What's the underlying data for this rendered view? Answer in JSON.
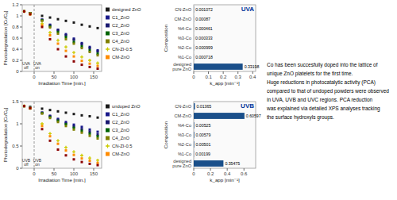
{
  "chart_data": [
    {
      "type": "scatter",
      "x_label": "Irradiation Time [min.]",
      "y_label": "Photodegradation [Cₜ/C₀]",
      "x": [
        -25,
        -10,
        20,
        40,
        60,
        80,
        100,
        120,
        140,
        160
      ],
      "xlim": [
        -30,
        170
      ],
      "xticks": [
        0,
        50,
        100,
        150
      ],
      "ylim": [
        0.0,
        1.2
      ],
      "yticks": [
        0,
        0.2,
        0.4,
        0.6,
        0.8,
        1,
        1.2
      ],
      "grid": false,
      "legend": "right",
      "vline_x": 0,
      "annotations": [
        {
          "text": "UVA\noff",
          "x": -20,
          "y": 0.02
        },
        {
          "text": "UVA\non",
          "x": 8,
          "y": 0.02
        }
      ],
      "series": [
        {
          "name": "designed ZnO",
          "color": "#1a1a1a",
          "marker": "square",
          "values": [
            1.08,
            1.05,
            1.0,
            0.97,
            0.94,
            0.91,
            0.88,
            0.84,
            0.81,
            0.78
          ]
        },
        {
          "name": "C1_ZnO",
          "color": "#1a1a8B",
          "marker": "square",
          "values": [
            1.08,
            1.05,
            0.93,
            0.84,
            0.75,
            0.67,
            0.59,
            0.51,
            0.44,
            0.38
          ]
        },
        {
          "name": "C2_ZnO",
          "color": "#191970",
          "marker": "square",
          "values": [
            1.08,
            1.05,
            0.93,
            0.83,
            0.74,
            0.65,
            0.57,
            0.49,
            0.42,
            0.36
          ]
        },
        {
          "name": "C3_ZnO",
          "color": "#006400",
          "marker": "square",
          "values": [
            1.08,
            1.05,
            0.92,
            0.81,
            0.71,
            0.62,
            0.53,
            0.45,
            0.38,
            0.32
          ]
        },
        {
          "name": "C4_ZnO",
          "color": "#808000",
          "marker": "square",
          "values": [
            1.08,
            1.05,
            0.91,
            0.79,
            0.68,
            0.58,
            0.5,
            0.42,
            0.35,
            0.29
          ]
        },
        {
          "name": "CN-ZI-0.5",
          "color": "#CCCC00",
          "marker": "plus",
          "values": [
            1.08,
            1.03,
            0.86,
            0.7,
            0.56,
            0.44,
            0.34,
            0.26,
            0.2,
            0.15
          ]
        },
        {
          "name": "CM-ZnO",
          "color": "#FF8C00",
          "marker": "square",
          "values": [
            1.08,
            1.03,
            0.83,
            0.65,
            0.5,
            0.37,
            0.27,
            0.19,
            0.14,
            0.1
          ]
        },
        {
          "color": "#8B0000",
          "marker": "square",
          "values": [
            1.08,
            1.03,
            0.8,
            0.58,
            0.4,
            0.27,
            0.18,
            0.12,
            0.08,
            0.05
          ]
        }
      ]
    },
    {
      "type": "scatter",
      "x_label": "Irradiation Time [min.]",
      "y_label": "Photodegradation [Cₜ/C₀]",
      "x": [
        -25,
        -10,
        20,
        40,
        60,
        80,
        100,
        120,
        140,
        160
      ],
      "xlim": [
        -30,
        170
      ],
      "xticks": [
        0,
        50,
        100,
        150
      ],
      "ylim": [
        0.0,
        1.5
      ],
      "yticks": [
        0,
        0.5,
        1,
        1.5
      ],
      "grid": false,
      "legend": "right",
      "vline_x": 0,
      "annotations": [
        {
          "text": "UVB\noff",
          "x": -20,
          "y": 0.02
        },
        {
          "text": "UVB\non",
          "x": 8,
          "y": 0.02
        }
      ],
      "series": [
        {
          "name": "undoped ZnO",
          "color": "#1a1a1a",
          "marker": "square",
          "values": [
            1.4,
            1.38,
            1.34,
            1.31,
            1.28,
            1.25,
            1.22,
            1.19,
            1.17,
            1.14
          ]
        },
        {
          "name": "C1_ZnO",
          "color": "#1a1a8B",
          "marker": "square",
          "values": [
            1.4,
            1.35,
            1.25,
            1.18,
            1.11,
            1.04,
            0.98,
            0.93,
            0.87,
            0.82
          ]
        },
        {
          "name": "C2_ZnO",
          "color": "#191970",
          "marker": "square",
          "values": [
            1.4,
            1.35,
            1.25,
            1.17,
            1.09,
            1.01,
            0.94,
            0.88,
            0.82,
            0.76
          ]
        },
        {
          "name": "C3_ZnO",
          "color": "#006400",
          "marker": "square",
          "values": [
            1.4,
            1.35,
            1.24,
            1.15,
            1.07,
            0.99,
            0.91,
            0.84,
            0.78,
            0.72
          ]
        },
        {
          "name": "C4_ZnO",
          "color": "#808000",
          "marker": "square",
          "values": [
            1.4,
            1.35,
            1.23,
            1.13,
            1.04,
            0.95,
            0.87,
            0.8,
            0.73,
            0.67
          ]
        },
        {
          "name": "CN-ZI-0.5",
          "color": "#CCCC00",
          "marker": "plus",
          "values": [
            1.4,
            1.35,
            1.0,
            0.78,
            0.62,
            0.47,
            0.37,
            0.29,
            0.23,
            0.18
          ]
        },
        {
          "name": "CM-ZnO",
          "color": "#FF8C00",
          "marker": "square",
          "values": [
            1.4,
            1.35,
            0.95,
            0.72,
            0.55,
            0.4,
            0.3,
            0.22,
            0.17,
            0.12
          ]
        },
        {
          "color": "#8B0000",
          "marker": "square",
          "values": [
            1.4,
            1.35,
            0.88,
            0.62,
            0.42,
            0.29,
            0.2,
            0.14,
            0.1,
            0.07
          ]
        }
      ]
    },
    {
      "type": "bar",
      "orientation": "horizontal",
      "x_label": "k_app [min⁻¹]",
      "y_label": "Composition",
      "categories": [
        "CN-ZnO",
        "CM-ZnO",
        "%4-Co",
        "%3-Co",
        "%2-Co",
        "%1-Co",
        "designed\npure ZnO"
      ],
      "values": [
        0.001072,
        0.00087,
        0.000461,
        0.000333,
        0.000999,
        0.000718,
        0.33198
      ],
      "color": "#1a4f8a",
      "data_labels": true,
      "xlim": [
        0,
        0.42
      ],
      "xticks": [
        0,
        0.1,
        0.2,
        0.3,
        0.4
      ],
      "grid": false,
      "annotations": [
        {
          "text": "UVA",
          "color": "#003399"
        }
      ]
    },
    {
      "type": "bar",
      "orientation": "horizontal",
      "x_label": "k_app [min⁻¹]",
      "y_label": "Composition",
      "categories": [
        "CN-ZnO",
        "CM-ZnO",
        "%4-Co",
        "%3-Co",
        "%2-Co",
        "%1-Co",
        "designed\npure ZnO"
      ],
      "values": [
        0.01365,
        0.60597,
        0.00525,
        0.00579,
        0.00501,
        0.00199,
        0.35475
      ],
      "color": "#1a4f8a",
      "data_labels": true,
      "xlim": [
        0,
        0.74
      ],
      "xticks": [
        0,
        0.2,
        0.4,
        0.6
      ],
      "grid": false,
      "annotations": [
        {
          "text": "UVB",
          "color": "#003399"
        }
      ]
    },
    {
      "type": "text",
      "text": "Co has been succesfully doped into the lattice of\nunique ZnO platelets for the first time.\nHuge reductions in photocatalytic activity (PCA)\ncompared to that of undoped powders were observed\nin UVA, UVB and UVC regions. PCA reduction\nwas explained via detailed XPS analyses tracking\nthe surface hydroxyls groups."
    }
  ]
}
